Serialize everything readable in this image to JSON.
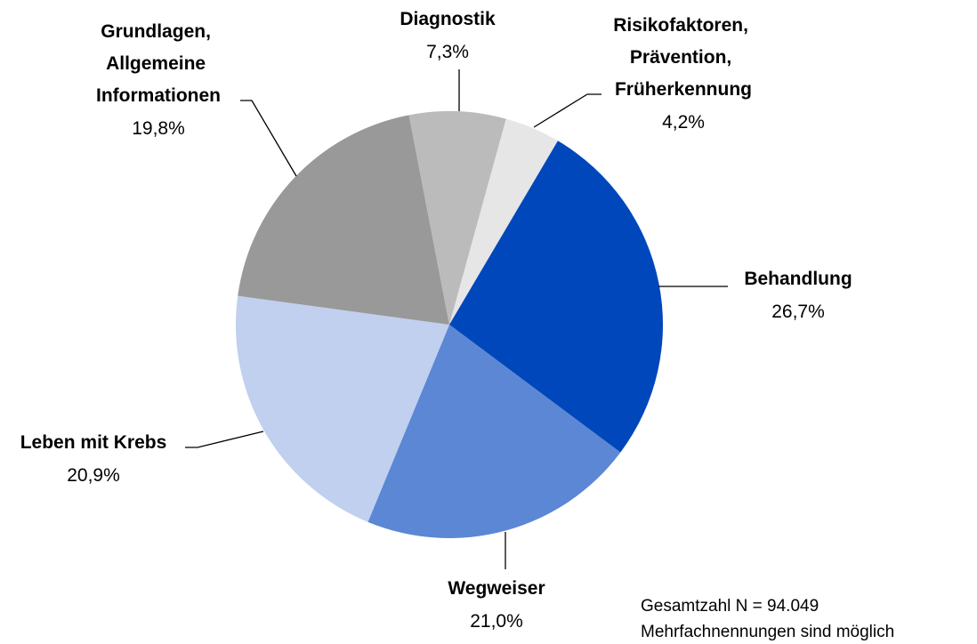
{
  "chart_data": {
    "type": "pie",
    "categories": [
      "Risikofaktoren, Prävention, Früherkennung",
      "Behandlung",
      "Wegweiser",
      "Leben mit Krebs",
      "Grundlagen, Allgemeine Informationen",
      "Diagnostik"
    ],
    "values": [
      4.2,
      26.7,
      21.0,
      20.9,
      19.8,
      7.3
    ],
    "value_labels": [
      "4,2%",
      "26,7%",
      "21,0%",
      "20,9%",
      "19,8%",
      "7,3%"
    ],
    "colors": [
      "#e6e6e6",
      "#0047bb",
      "#5b87d4",
      "#c0d0ee",
      "#999999",
      "#bbbbbb"
    ],
    "notes": [
      "Gesamtzahl  N = 94.049",
      "Mehrfachnennungen sind möglich"
    ]
  }
}
